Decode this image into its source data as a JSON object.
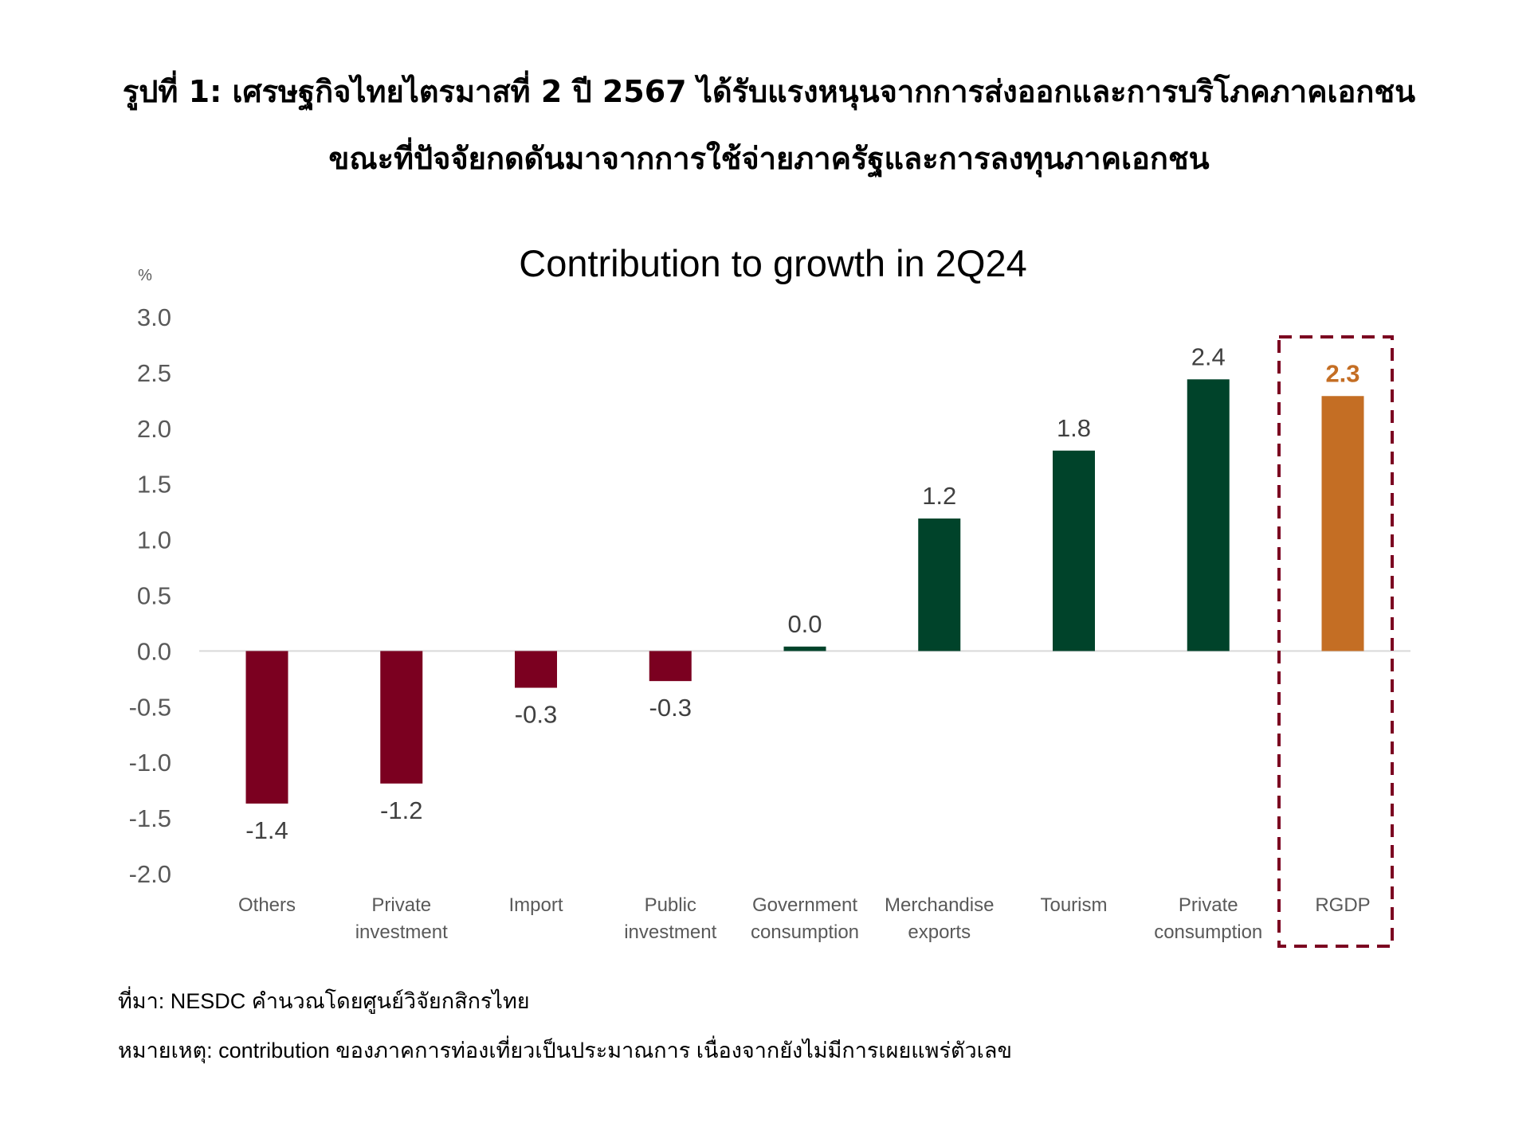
{
  "figure": {
    "title_line1": "รูปที่ 1: เศรษฐกิจไทยไตรมาสที่ 2 ปี 2567 ได้รับแรงหนุนจากการส่งออกและการบริโภคภาคเอกชน",
    "title_line2": "ขณะที่ปัจจัยกดดันมาจากการใช้จ่ายภาครัฐและการลงทุนภาคเอกชน",
    "source": "ที่มา: NESDC คำนวณโดยศูนย์วิจัยกสิกรไทย",
    "remark": "หมายเหตุ: contribution ของภาคการท่องเที่ยวเป็นประมาณการ เนื่องจากยังไม่มีการเผยแพร่ตัวเลข"
  },
  "chart_data": {
    "type": "bar",
    "title": "Contribution to growth in 2Q24",
    "ylabel": "%",
    "ylim": [
      -2.0,
      3.0
    ],
    "yticks": [
      "3.0",
      "2.5",
      "2.0",
      "1.5",
      "1.0",
      "0.5",
      "0.0",
      "-0.5",
      "-1.0",
      "-1.5",
      "-2.0"
    ],
    "grid": false,
    "categories": [
      [
        "Others"
      ],
      [
        "Private",
        "investment"
      ],
      [
        "Import"
      ],
      [
        "Public",
        "investment"
      ],
      [
        "Government",
        "consumption"
      ],
      [
        "Merchandise",
        "exports"
      ],
      [
        "Tourism"
      ],
      [
        "Private",
        "consumption"
      ],
      [
        "RGDP"
      ]
    ],
    "values": [
      -1.37,
      -1.19,
      -0.33,
      -0.27,
      0.04,
      1.19,
      1.8,
      2.44,
      2.29
    ],
    "labels": [
      "-1.4",
      "-1.2",
      "-0.3",
      "-0.3",
      "0.0",
      "1.2",
      "1.8",
      "2.4",
      "2.3"
    ],
    "highlight": "RGDP",
    "colors": {
      "negative": "#7b0020",
      "positive": "#00432a",
      "highlight": "#c46e24",
      "highlight_box": "#7b0020",
      "axis_text": "#595959"
    }
  }
}
